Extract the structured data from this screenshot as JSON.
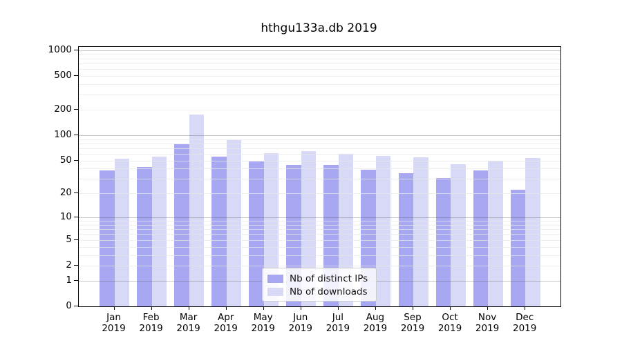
{
  "chart_data": {
    "type": "bar",
    "title": "hthgu133a.db 2019",
    "months": [
      "Jan",
      "Feb",
      "Mar",
      "Apr",
      "May",
      "Jun",
      "Jul",
      "Aug",
      "Sep",
      "Oct",
      "Nov",
      "Dec"
    ],
    "year": "2019",
    "series": [
      {
        "name": "Nb of distinct IPs",
        "color": "#a8a8f2",
        "values": [
          38,
          42,
          78,
          56,
          49,
          44,
          44,
          39,
          35,
          31,
          38,
          22
        ]
      },
      {
        "name": "Nb of downloads",
        "color": "#d8d8f7",
        "values": [
          53,
          56,
          176,
          88,
          61,
          65,
          60,
          57,
          55,
          45,
          50,
          54
        ]
      }
    ],
    "yscale": "log1p",
    "ylim": [
      0,
      1100
    ],
    "ytick_values": [
      1000,
      500,
      200,
      100,
      50,
      20,
      10,
      5,
      2,
      1,
      0
    ],
    "major_grid_values": [
      1,
      10,
      100,
      1000
    ],
    "minor_grid_subs": [
      2,
      3,
      4,
      5,
      6,
      7,
      8,
      9
    ],
    "grid": true,
    "legend_position": "inside lower center",
    "xlabel": "",
    "ylabel": ""
  },
  "colors": {
    "background": "#ffffff",
    "spine": "#000000",
    "bar_ips": "#a8a8f2",
    "bar_downloads": "#d8d8f7",
    "grid_major": "#c5c5c5",
    "grid_minor": "#efefef",
    "text": "#000000"
  }
}
